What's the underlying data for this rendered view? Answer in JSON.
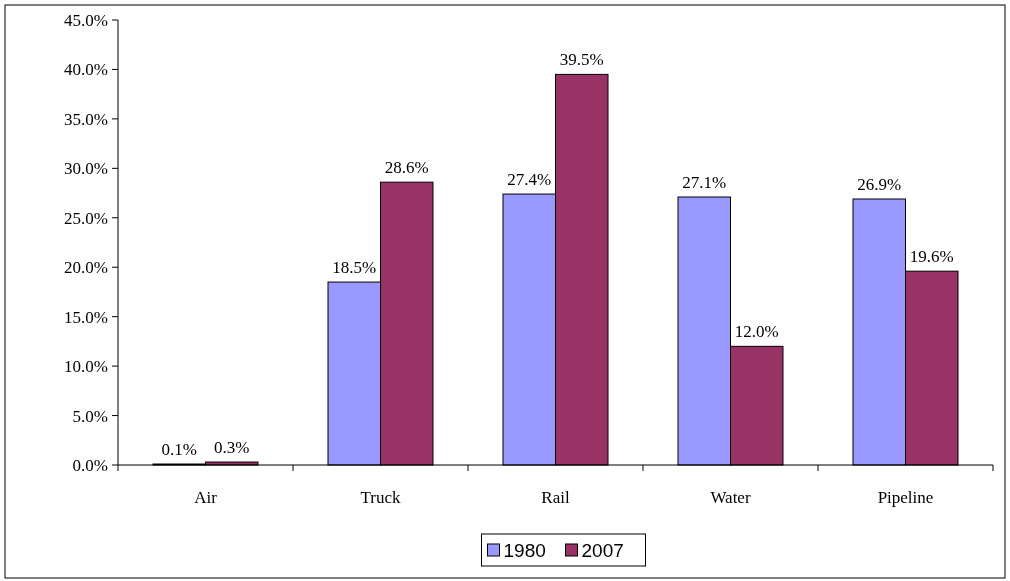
{
  "chart_data": {
    "type": "bar",
    "categories": [
      "Air",
      "Truck",
      "Rail",
      "Water",
      "Pipeline"
    ],
    "series": [
      {
        "name": "1980",
        "color": "#9999ff",
        "values": [
          0.1,
          18.5,
          27.4,
          27.1,
          26.9
        ],
        "value_labels": [
          "0.1%",
          "18.5%",
          "27.4%",
          "27.1%",
          "26.9%"
        ]
      },
      {
        "name": "2007",
        "color": "#993366",
        "values": [
          0.3,
          28.6,
          39.5,
          12.0,
          19.6
        ],
        "value_labels": [
          "0.3%",
          "28.6%",
          "39.5%",
          "12.0%",
          "19.6%"
        ]
      }
    ],
    "ylim": [
      0,
      45
    ],
    "yticks": [
      {
        "value": 0,
        "label": "0.0%"
      },
      {
        "value": 5,
        "label": "5.0%"
      },
      {
        "value": 10,
        "label": "10.0%"
      },
      {
        "value": 15,
        "label": "15.0%"
      },
      {
        "value": 20,
        "label": "20.0%"
      },
      {
        "value": 25,
        "label": "25.0%"
      },
      {
        "value": 30,
        "label": "30.0%"
      },
      {
        "value": 35,
        "label": "35.0%"
      },
      {
        "value": 40,
        "label": "40.0%"
      },
      {
        "value": 45,
        "label": "45.0%"
      }
    ],
    "grid": false,
    "legend": "bottom"
  }
}
